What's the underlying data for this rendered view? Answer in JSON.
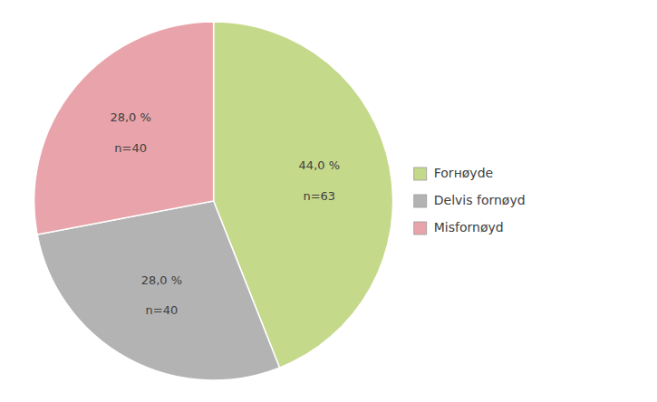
{
  "chart_data": {
    "type": "pie",
    "categories": [
      "Forнøyde",
      "Delvis fornøyd",
      "Misfornøyd"
    ],
    "values": [
      44.0,
      28.0,
      28.0
    ],
    "value_labels": [
      "44,0 %",
      "28,0 %",
      "28,0 %"
    ],
    "count_labels": [
      "n=63",
      "n=40",
      "n=40"
    ],
    "colors": [
      "#c5d98b",
      "#b3b3b3",
      "#e8a4aa"
    ],
    "data_labels": true,
    "legend": "right"
  }
}
